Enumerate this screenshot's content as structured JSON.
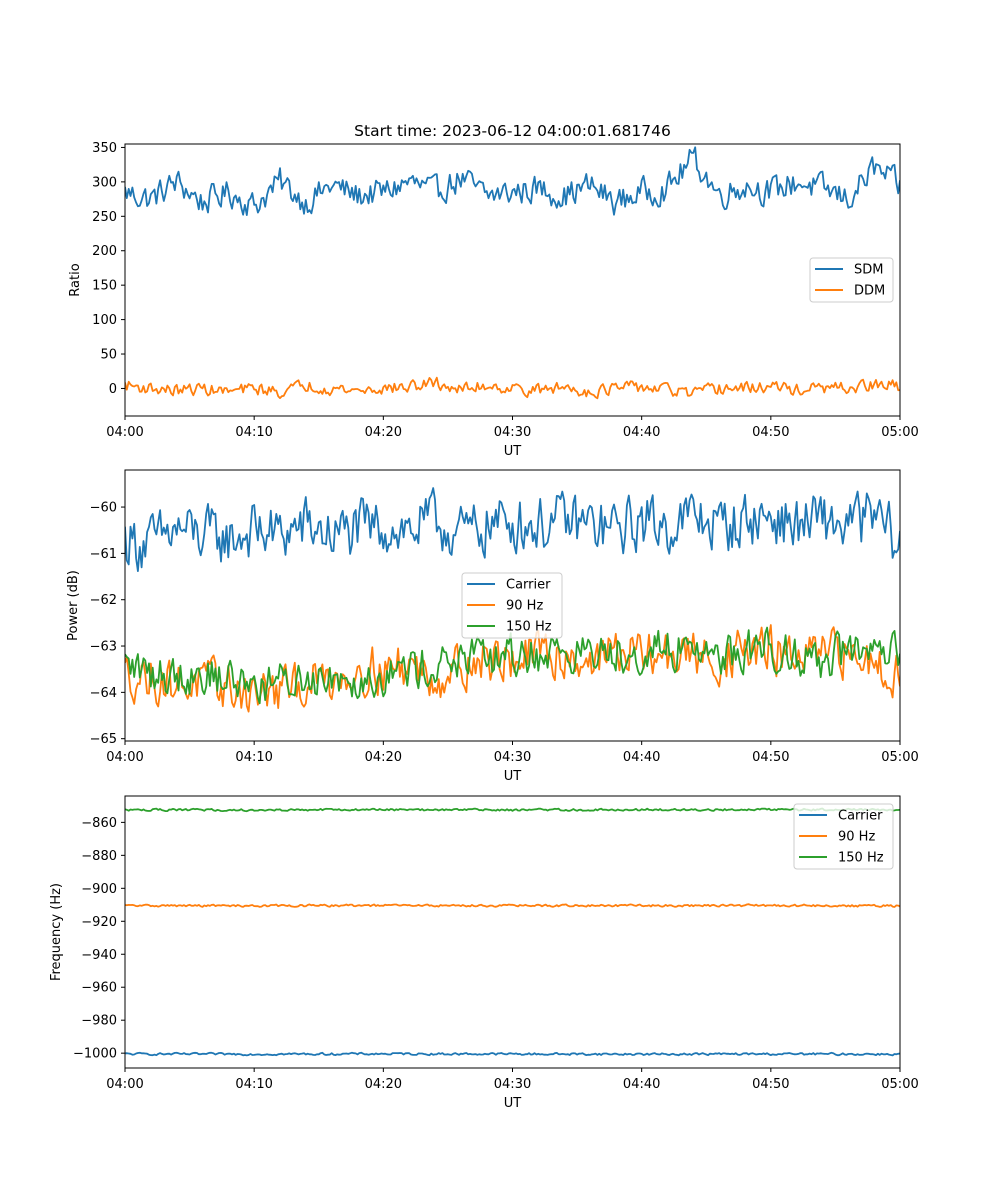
{
  "figure_title": "Start time: 2023-06-12 04:00:01.681746",
  "colors": {
    "C0": "#1f77b4",
    "C1": "#ff7f0e",
    "C2": "#2ca02c"
  },
  "chart_data": [
    {
      "type": "line",
      "title": "Start time: 2023-06-12 04:00:01.681746",
      "xlabel": "UT",
      "ylabel": "Ratio",
      "xlim": [
        "04:00",
        "05:00"
      ],
      "xticks": [
        "04:00",
        "04:10",
        "04:20",
        "04:30",
        "04:40",
        "04:50",
        "05:00"
      ],
      "ylim": [
        -40,
        355
      ],
      "yticks": [
        0,
        50,
        100,
        150,
        200,
        250,
        300,
        350
      ],
      "ytick_labels": [
        "0",
        "50",
        "100",
        "150",
        "200",
        "250",
        "300",
        "350"
      ],
      "grid": false,
      "legend": "center-right",
      "series": [
        {
          "name": "SDM",
          "color": "#1f77b4",
          "x": [
            "04:00",
            "04:02",
            "04:04",
            "04:06",
            "04:08",
            "04:10",
            "04:12",
            "04:14",
            "04:16",
            "04:18",
            "04:20",
            "04:22",
            "04:24",
            "04:26",
            "04:28",
            "04:30",
            "04:32",
            "04:34",
            "04:36",
            "04:38",
            "04:40",
            "04:42",
            "04:44",
            "04:46",
            "04:48",
            "04:50",
            "04:52",
            "04:54",
            "04:56",
            "04:58",
            "05:00"
          ],
          "values": [
            285,
            275,
            300,
            270,
            285,
            265,
            300,
            270,
            295,
            280,
            285,
            300,
            285,
            305,
            280,
            285,
            290,
            280,
            295,
            270,
            285,
            290,
            335,
            280,
            295,
            285,
            300,
            290,
            275,
            320,
            293
          ],
          "noise": 18
        },
        {
          "name": "DDM",
          "color": "#ff7f0e",
          "x": [
            "04:00",
            "04:02",
            "04:04",
            "04:06",
            "04:08",
            "04:10",
            "04:12",
            "04:14",
            "04:16",
            "04:18",
            "04:20",
            "04:22",
            "04:24",
            "04:26",
            "04:28",
            "04:30",
            "04:32",
            "04:34",
            "04:36",
            "04:38",
            "04:40",
            "04:42",
            "04:44",
            "04:46",
            "04:48",
            "04:50",
            "04:52",
            "04:54",
            "04:56",
            "04:58",
            "05:00"
          ],
          "values": [
            5,
            0,
            -3,
            0,
            -5,
            0,
            -5,
            5,
            0,
            -3,
            0,
            2,
            8,
            -2,
            5,
            0,
            -3,
            2,
            -5,
            0,
            2,
            -2,
            -8,
            0,
            0,
            3,
            -2,
            0,
            0,
            5,
            3
          ],
          "noise": 8
        }
      ]
    },
    {
      "type": "line",
      "title": "",
      "xlabel": "UT",
      "ylabel": "Power (dB)",
      "xlim": [
        "04:00",
        "05:00"
      ],
      "xticks": [
        "04:00",
        "04:10",
        "04:20",
        "04:30",
        "04:40",
        "04:50",
        "05:00"
      ],
      "ylim": [
        -65.05,
        -59.2
      ],
      "yticks": [
        -65,
        -64,
        -63,
        -62,
        -61,
        -60
      ],
      "ytick_labels": [
        "−65",
        "−64",
        "−63",
        "−62",
        "−61",
        "−60"
      ],
      "grid": false,
      "legend": "center",
      "series": [
        {
          "name": "Carrier",
          "color": "#1f77b4",
          "x": [
            "04:00",
            "04:02",
            "04:04",
            "04:06",
            "04:08",
            "04:10",
            "04:12",
            "04:14",
            "04:16",
            "04:18",
            "04:20",
            "04:22",
            "04:24",
            "04:26",
            "04:28",
            "04:30",
            "04:32",
            "04:34",
            "04:36",
            "04:38",
            "04:40",
            "04:42",
            "04:44",
            "04:46",
            "04:48",
            "04:50",
            "04:52",
            "04:54",
            "04:56",
            "04:58",
            "05:00"
          ],
          "values": [
            -60.7,
            -60.8,
            -60.5,
            -60.6,
            -60.7,
            -60.5,
            -60.6,
            -60.4,
            -60.6,
            -60.5,
            -60.4,
            -60.5,
            -60.3,
            -60.6,
            -60.4,
            -60.3,
            -60.4,
            -60.3,
            -60.4,
            -60.5,
            -60.3,
            -60.4,
            -60.2,
            -60.4,
            -60.3,
            -60.2,
            -60.4,
            -60.3,
            -60.4,
            -60.2,
            -60.8
          ],
          "noise": 0.55
        },
        {
          "name": "90 Hz",
          "color": "#ff7f0e",
          "x": [
            "04:00",
            "04:02",
            "04:04",
            "04:06",
            "04:08",
            "04:10",
            "04:12",
            "04:14",
            "04:16",
            "04:18",
            "04:20",
            "04:22",
            "04:24",
            "04:26",
            "04:28",
            "04:30",
            "04:32",
            "04:34",
            "04:36",
            "04:38",
            "04:40",
            "04:42",
            "04:44",
            "04:46",
            "04:48",
            "04:50",
            "04:52",
            "04:54",
            "04:56",
            "04:58",
            "05:00"
          ],
          "values": [
            -63.6,
            -63.7,
            -63.8,
            -63.8,
            -63.9,
            -64.0,
            -64.0,
            -63.8,
            -63.7,
            -63.5,
            -63.5,
            -63.4,
            -63.7,
            -63.4,
            -63.3,
            -63.3,
            -63.2,
            -63.2,
            -63.3,
            -63.1,
            -63.2,
            -63.2,
            -63.2,
            -63.3,
            -63.1,
            -63.1,
            -63.3,
            -63.2,
            -63.2,
            -63.3,
            -63.6
          ],
          "noise": 0.45
        },
        {
          "name": "150 Hz",
          "color": "#2ca02c",
          "x": [
            "04:00",
            "04:02",
            "04:04",
            "04:06",
            "04:08",
            "04:10",
            "04:12",
            "04:14",
            "04:16",
            "04:18",
            "04:20",
            "04:22",
            "04:24",
            "04:26",
            "04:28",
            "04:30",
            "04:32",
            "04:34",
            "04:36",
            "04:38",
            "04:40",
            "04:42",
            "04:44",
            "04:46",
            "04:48",
            "04:50",
            "04:52",
            "04:54",
            "04:56",
            "04:58",
            "05:00"
          ],
          "values": [
            -63.4,
            -63.6,
            -63.6,
            -63.6,
            -63.7,
            -63.8,
            -63.8,
            -63.7,
            -63.6,
            -63.7,
            -63.6,
            -63.5,
            -63.4,
            -63.3,
            -63.3,
            -63.2,
            -63.2,
            -63.1,
            -63.2,
            -63.1,
            -63.1,
            -63.1,
            -63.0,
            -63.2,
            -63.1,
            -63.0,
            -63.2,
            -63.3,
            -63.1,
            -63.3,
            -63.2
          ],
          "noise": 0.4
        }
      ]
    },
    {
      "type": "line",
      "title": "",
      "xlabel": "UT",
      "ylabel": "Frequency (Hz)",
      "xlim": [
        "04:00",
        "05:00"
      ],
      "xticks": [
        "04:00",
        "04:10",
        "04:20",
        "04:30",
        "04:40",
        "04:50",
        "05:00"
      ],
      "ylim": [
        -1009,
        -844
      ],
      "yticks": [
        -1000,
        -980,
        -960,
        -940,
        -920,
        -900,
        -880,
        -860
      ],
      "ytick_labels": [
        "−1000",
        "−980",
        "−960",
        "−940",
        "−920",
        "−900",
        "−880",
        "−860"
      ],
      "grid": false,
      "legend": "top-right",
      "series": [
        {
          "name": "Carrier",
          "color": "#1f77b4",
          "x": [
            "04:00",
            "04:10",
            "04:20",
            "04:30",
            "04:40",
            "04:50",
            "05:00"
          ],
          "values": [
            -1000.5,
            -1000.6,
            -1000.4,
            -1000.5,
            -1000.6,
            -1000.5,
            -1000.6
          ],
          "noise": 0.6
        },
        {
          "name": "90 Hz",
          "color": "#ff7f0e",
          "x": [
            "04:00",
            "04:10",
            "04:20",
            "04:30",
            "04:40",
            "04:50",
            "05:00"
          ],
          "values": [
            -910.5,
            -910.6,
            -910.4,
            -910.5,
            -910.5,
            -910.4,
            -910.7
          ],
          "noise": 0.6
        },
        {
          "name": "150 Hz",
          "color": "#2ca02c",
          "x": [
            "04:00",
            "04:10",
            "04:20",
            "04:30",
            "04:40",
            "04:50",
            "05:00"
          ],
          "values": [
            -852.4,
            -852.5,
            -852.3,
            -852.4,
            -852.3,
            -852.2,
            -852.4
          ],
          "noise": 0.6
        }
      ]
    }
  ]
}
